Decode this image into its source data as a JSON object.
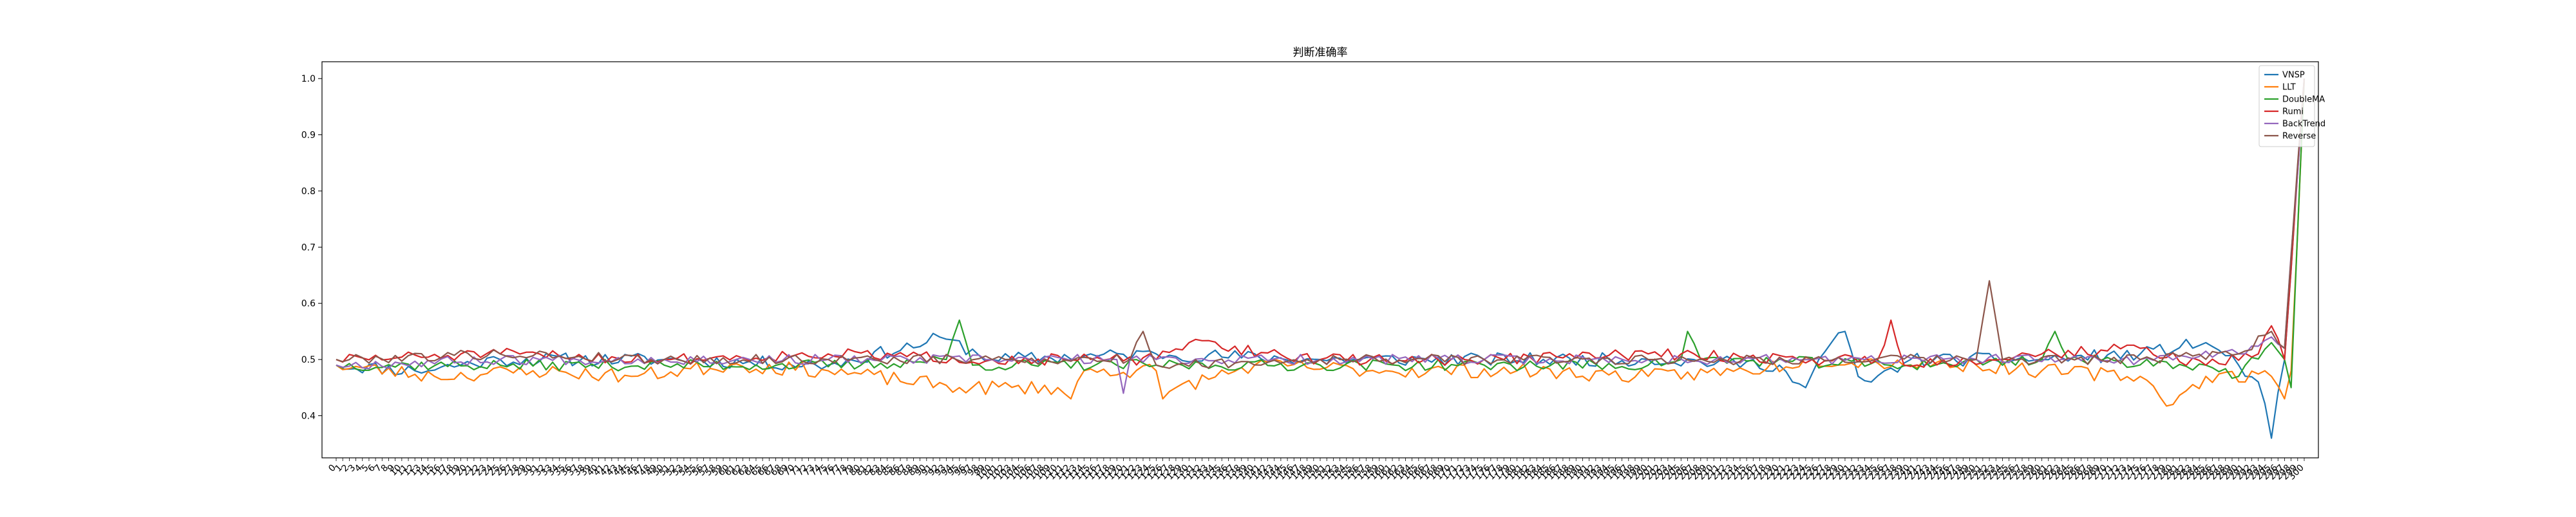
{
  "chart_data": {
    "type": "line",
    "title": "判断准确率",
    "xlabel": "",
    "ylabel": "",
    "ylim": [
      0.325,
      1.03
    ],
    "yticks": [
      0.4,
      0.5,
      0.6,
      0.7,
      0.8,
      0.9,
      1.0
    ],
    "ytick_labels": [
      "0.4",
      "0.5",
      "0.6",
      "0.7",
      "0.8",
      "0.9",
      "1.0"
    ],
    "grid": false,
    "legend_position": "top-right",
    "n_points": 301,
    "series": [
      {
        "name": "VNSP",
        "color": "#1f77b4",
        "anchors": [
          [
            0,
            0.49
          ],
          [
            12,
            0.48
          ],
          [
            25,
            0.5
          ],
          [
            50,
            0.5
          ],
          [
            75,
            0.49
          ],
          [
            90,
            0.53
          ],
          [
            92,
            0.54
          ],
          [
            100,
            0.5
          ],
          [
            125,
            0.51
          ],
          [
            150,
            0.5
          ],
          [
            175,
            0.5
          ],
          [
            200,
            0.5
          ],
          [
            220,
            0.49
          ],
          [
            222,
            0.46
          ],
          [
            224,
            0.45
          ],
          [
            226,
            0.5
          ],
          [
            230,
            0.55
          ],
          [
            232,
            0.47
          ],
          [
            234,
            0.46
          ],
          [
            240,
            0.5
          ],
          [
            260,
            0.5
          ],
          [
            275,
            0.51
          ],
          [
            285,
            0.53
          ],
          [
            290,
            0.49
          ],
          [
            293,
            0.46
          ],
          [
            295,
            0.36
          ],
          [
            297,
            0.5
          ],
          [
            300,
            1.0
          ]
        ],
        "noise": 0.012,
        "seed": 11
      },
      {
        "name": "LLT",
        "color": "#ff7f0e",
        "anchors": [
          [
            0,
            0.49
          ],
          [
            15,
            0.47
          ],
          [
            30,
            0.48
          ],
          [
            45,
            0.47
          ],
          [
            60,
            0.49
          ],
          [
            75,
            0.48
          ],
          [
            95,
            0.45
          ],
          [
            110,
            0.45
          ],
          [
            112,
            0.43
          ],
          [
            114,
            0.48
          ],
          [
            125,
            0.48
          ],
          [
            126,
            0.43
          ],
          [
            128,
            0.45
          ],
          [
            140,
            0.49
          ],
          [
            160,
            0.48
          ],
          [
            180,
            0.48
          ],
          [
            200,
            0.47
          ],
          [
            215,
            0.48
          ],
          [
            225,
            0.5
          ],
          [
            250,
            0.49
          ],
          [
            260,
            0.48
          ],
          [
            275,
            0.47
          ],
          [
            280,
            0.42
          ],
          [
            285,
            0.47
          ],
          [
            295,
            0.47
          ],
          [
            297,
            0.43
          ],
          [
            298,
            0.48
          ],
          [
            300,
            1.0
          ]
        ],
        "noise": 0.013,
        "seed": 23
      },
      {
        "name": "DoubleMA",
        "color": "#2ca02c",
        "anchors": [
          [
            0,
            0.49
          ],
          [
            25,
            0.49
          ],
          [
            50,
            0.49
          ],
          [
            80,
            0.49
          ],
          [
            93,
            0.5
          ],
          [
            95,
            0.57
          ],
          [
            97,
            0.49
          ],
          [
            125,
            0.49
          ],
          [
            150,
            0.49
          ],
          [
            175,
            0.49
          ],
          [
            200,
            0.49
          ],
          [
            205,
            0.5
          ],
          [
            206,
            0.55
          ],
          [
            208,
            0.5
          ],
          [
            240,
            0.49
          ],
          [
            260,
            0.5
          ],
          [
            262,
            0.55
          ],
          [
            264,
            0.5
          ],
          [
            285,
            0.49
          ],
          [
            290,
            0.47
          ],
          [
            295,
            0.53
          ],
          [
            297,
            0.5
          ],
          [
            298,
            0.45
          ],
          [
            300,
            1.0
          ]
        ],
        "noise": 0.01,
        "seed": 37
      },
      {
        "name": "Rumi",
        "color": "#d62728",
        "anchors": [
          [
            0,
            0.5
          ],
          [
            25,
            0.51
          ],
          [
            50,
            0.5
          ],
          [
            75,
            0.51
          ],
          [
            100,
            0.5
          ],
          [
            125,
            0.5
          ],
          [
            130,
            0.53
          ],
          [
            150,
            0.5
          ],
          [
            175,
            0.5
          ],
          [
            200,
            0.51
          ],
          [
            225,
            0.5
          ],
          [
            235,
            0.5
          ],
          [
            237,
            0.57
          ],
          [
            239,
            0.49
          ],
          [
            260,
            0.51
          ],
          [
            275,
            0.52
          ],
          [
            285,
            0.49
          ],
          [
            293,
            0.51
          ],
          [
            295,
            0.56
          ],
          [
            297,
            0.5
          ],
          [
            300,
            1.0
          ]
        ],
        "noise": 0.01,
        "seed": 51
      },
      {
        "name": "BackTrend",
        "color": "#9467bd",
        "anchors": [
          [
            0,
            0.49
          ],
          [
            25,
            0.5
          ],
          [
            50,
            0.5
          ],
          [
            75,
            0.5
          ],
          [
            100,
            0.5
          ],
          [
            119,
            0.5
          ],
          [
            120,
            0.44
          ],
          [
            121,
            0.5
          ],
          [
            125,
            0.5
          ],
          [
            150,
            0.5
          ],
          [
            175,
            0.5
          ],
          [
            200,
            0.5
          ],
          [
            225,
            0.5
          ],
          [
            250,
            0.5
          ],
          [
            275,
            0.5
          ],
          [
            290,
            0.51
          ],
          [
            295,
            0.54
          ],
          [
            297,
            0.52
          ],
          [
            300,
            1.0
          ]
        ],
        "noise": 0.009,
        "seed": 67
      },
      {
        "name": "Reverse",
        "color": "#8c564b",
        "anchors": [
          [
            0,
            0.5
          ],
          [
            25,
            0.51
          ],
          [
            50,
            0.5
          ],
          [
            75,
            0.5
          ],
          [
            100,
            0.5
          ],
          [
            121,
            0.5
          ],
          [
            123,
            0.55
          ],
          [
            125,
            0.49
          ],
          [
            150,
            0.5
          ],
          [
            175,
            0.5
          ],
          [
            200,
            0.5
          ],
          [
            225,
            0.5
          ],
          [
            250,
            0.5
          ],
          [
            252,
            0.64
          ],
          [
            254,
            0.5
          ],
          [
            275,
            0.5
          ],
          [
            290,
            0.51
          ],
          [
            295,
            0.55
          ],
          [
            297,
            0.52
          ],
          [
            300,
            1.0
          ]
        ],
        "noise": 0.009,
        "seed": 79
      }
    ]
  }
}
